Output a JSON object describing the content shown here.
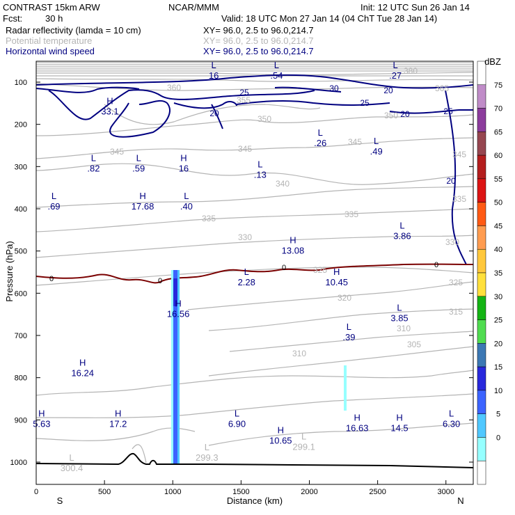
{
  "header": {
    "model": "CONTRAST 15km ARW",
    "org": "NCAR/MMM",
    "init": "Init: 12 UTC Sun 26 Jan 14",
    "fcst_label": "Fcst:",
    "fcst_value": "30 h",
    "valid": "Valid: 18 UTC Mon 27 Jan 14 (04 ChT Tue 28 Jan 14)",
    "fields": [
      {
        "name": "Radar reflectivity (lamda = 10 cm)",
        "xy": "XY=  96.0,  2.5 to  96.0,214.7",
        "color": "#000000"
      },
      {
        "name": "Potential temperature",
        "xy": "XY=  96.0,  2.5 to  96.0,214.7",
        "color": "#b4b4b4"
      },
      {
        "name": "Horizontal wind speed",
        "xy": "XY=  96.0,  2.5 to  96.0,214.7",
        "color": "#000080"
      }
    ]
  },
  "chart_data": {
    "type": "cross-section",
    "xlabel": "Distance (km)",
    "ylabel": "Pressure (hPa)",
    "xlim": [
      0,
      3200
    ],
    "ylim": [
      1050,
      20
    ],
    "x_ticks": [
      "0",
      "500",
      "1000",
      "1500",
      "2000",
      "2500",
      "3000"
    ],
    "x_tick_values": [
      0,
      500,
      1000,
      1500,
      2000,
      2500,
      3000
    ],
    "y_ticks": [
      "100",
      "200",
      "300",
      "400",
      "500",
      "600",
      "700",
      "800",
      "900",
      "1000"
    ],
    "y_tick_values": [
      100,
      200,
      300,
      400,
      500,
      600,
      700,
      800,
      900,
      1000
    ],
    "x_end_labels": {
      "left": "S",
      "right": "N"
    },
    "colorbar": {
      "title": "dBZ",
      "ticks": [
        "75",
        "70",
        "65",
        "60",
        "55",
        "50",
        "45",
        "40",
        "35",
        "30",
        "25",
        "20",
        "15",
        "10",
        "5",
        "0"
      ],
      "colors": [
        "#ffffff",
        "#c08cc8",
        "#8c3c9c",
        "#964650",
        "#b41e1e",
        "#dc1414",
        "#ff5a14",
        "#ff9c50",
        "#ffc83c",
        "#ffe03c",
        "#14b414",
        "#50dc50",
        "#3c78b4",
        "#2828dc",
        "#3c64ff",
        "#50c8ff",
        "#96ffff",
        "#ffffff"
      ]
    },
    "wind_contours": [
      {
        "label": "16",
        "x": 1300,
        "p": 70,
        "type": "L"
      },
      {
        "label": ".54",
        "x": 1760,
        "p": 70,
        "type": "L"
      },
      {
        "label": ".27",
        "x": 2630,
        "p": 70,
        "type": "L"
      },
      {
        "label": "33.1",
        "x": 540,
        "p": 155,
        "type": "H"
      },
      {
        "label": ".82",
        "x": 420,
        "p": 290,
        "type": "L"
      },
      {
        "label": ".59",
        "x": 750,
        "p": 290,
        "type": "L"
      },
      {
        "label": "16",
        "x": 1080,
        "p": 290,
        "type": "H"
      },
      {
        "label": ".13",
        "x": 1640,
        "p": 305,
        "type": "L"
      },
      {
        "label": ".26",
        "x": 2080,
        "p": 230,
        "type": "L"
      },
      {
        "label": ".49",
        "x": 2490,
        "p": 250,
        "type": "L"
      },
      {
        "label": ".69",
        "x": 130,
        "p": 380,
        "type": "L"
      },
      {
        "label": "17.68",
        "x": 780,
        "p": 380,
        "type": "H"
      },
      {
        "label": ".40",
        "x": 1100,
        "p": 380,
        "type": "L"
      },
      {
        "label": "13.08",
        "x": 1880,
        "p": 485,
        "type": "H"
      },
      {
        "label": "3.86",
        "x": 2680,
        "p": 450,
        "type": "L"
      },
      {
        "label": "2.28",
        "x": 1540,
        "p": 560,
        "type": "L"
      },
      {
        "label": "10.45",
        "x": 2200,
        "p": 560,
        "type": "H"
      },
      {
        "label": "16.56",
        "x": 1040,
        "p": 635,
        "type": "H"
      },
      {
        "label": "3.85",
        "x": 2660,
        "p": 645,
        "type": "L"
      },
      {
        "label": ".39",
        "x": 2290,
        "p": 690,
        "type": "L"
      },
      {
        "label": "16.24",
        "x": 340,
        "p": 775,
        "type": "H"
      },
      {
        "label": "5.63",
        "x": 40,
        "p": 895,
        "type": "H"
      },
      {
        "label": "17.2",
        "x": 600,
        "p": 895,
        "type": "H"
      },
      {
        "label": "6.90",
        "x": 1470,
        "p": 895,
        "type": "L"
      },
      {
        "label": "10.65",
        "x": 1790,
        "p": 935,
        "type": "H"
      },
      {
        "label": "16.63",
        "x": 2350,
        "p": 905,
        "type": "H"
      },
      {
        "label": "14.5",
        "x": 2660,
        "p": 905,
        "type": "H"
      },
      {
        "label": "6.30",
        "x": 3040,
        "p": 895,
        "type": "L"
      }
    ],
    "theta_lows": [
      {
        "label": "300.4",
        "x": 260,
        "p": 1000,
        "type": "L"
      },
      {
        "label": "299.3",
        "x": 1250,
        "p": 975,
        "type": "L"
      },
      {
        "label": "299.1",
        "x": 1960,
        "p": 950,
        "type": "L"
      }
    ],
    "theta_labels": [
      "360",
      "355",
      "350",
      "345",
      "340",
      "335",
      "330",
      "325",
      "320",
      "315",
      "310",
      "305",
      "365",
      "380"
    ],
    "wind_labels": [
      "25",
      "30",
      "20",
      "0"
    ]
  }
}
